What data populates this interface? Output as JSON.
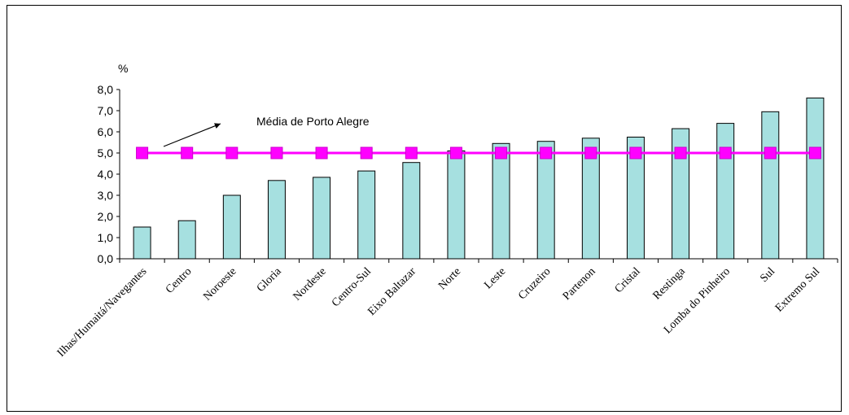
{
  "chart_data": {
    "type": "bar",
    "ylabel": "%",
    "ylim": [
      0,
      8
    ],
    "ytick_labels": [
      "0,0",
      "1,0",
      "2,0",
      "3,0",
      "4,0",
      "5,0",
      "6,0",
      "7,0",
      "8,0"
    ],
    "categories": [
      "Ilhas/Humaitá/Navegantes",
      "Centro",
      "Noroeste",
      "Gloria",
      "Nordeste",
      "Centro-Sul",
      "Eixo Baltazar",
      "Norte",
      "Leste",
      "Cruzeiro",
      "Partenon",
      "Cristal",
      "Restinga",
      "Lomba do Pinheiro",
      "Sul",
      "Extremo Sul"
    ],
    "series": [
      {
        "type": "bar",
        "color": "#a6e0e0",
        "values": [
          1.5,
          1.8,
          3.0,
          3.7,
          3.85,
          4.15,
          4.55,
          5.1,
          5.45,
          5.55,
          5.7,
          5.75,
          6.15,
          6.4,
          6.95,
          7.6
        ]
      },
      {
        "type": "line",
        "color": "#ff00ff",
        "marker": "square",
        "values": [
          5.0,
          5.0,
          5.0,
          5.0,
          5.0,
          5.0,
          5.0,
          5.0,
          5.0,
          5.0,
          5.0,
          5.0,
          5.0,
          5.0,
          5.0,
          5.0
        ]
      }
    ],
    "annotations": [
      {
        "text": "Média de Porto Alegre",
        "arrow": true
      }
    ],
    "grid": false,
    "legend": "none"
  }
}
